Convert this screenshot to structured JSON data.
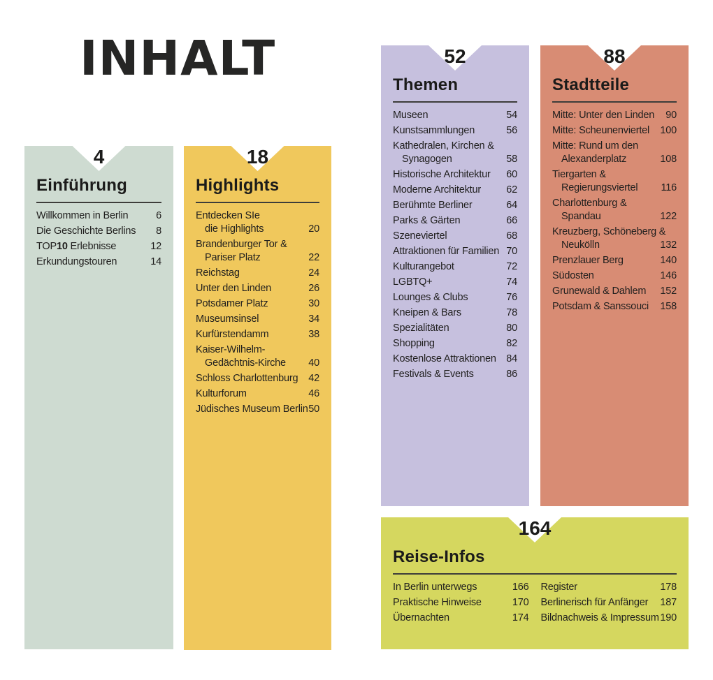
{
  "page": {
    "title": "INHALT",
    "background": "#ffffff",
    "text_color": "#201f1e"
  },
  "sections": [
    {
      "name": "einfuehrung",
      "page_number": "4",
      "heading": "Einführung",
      "color": "#cedbd1",
      "items": [
        {
          "lines": [
            "Willkommen in Berlin"
          ],
          "page": "6"
        },
        {
          "lines": [
            "Die Geschichte Berlins"
          ],
          "page": "8"
        },
        {
          "lines": [
            [
              {
                "text": "TOP"
              },
              {
                "text": "10",
                "bold": true
              },
              {
                "text": " Erlebnisse"
              }
            ]
          ],
          "page": "12"
        },
        {
          "lines": [
            "Erkundungstouren"
          ],
          "page": "14"
        }
      ]
    },
    {
      "name": "highlights",
      "page_number": "18",
      "heading": "Highlights",
      "color": "#f0c85c",
      "items": [
        {
          "lines": [
            "Entdecken SIe",
            "die Highlights"
          ],
          "page": "20"
        },
        {
          "lines": [
            "Brandenburger Tor &",
            "Pariser Platz"
          ],
          "page": "22"
        },
        {
          "lines": [
            "Reichstag"
          ],
          "page": "24"
        },
        {
          "lines": [
            "Unter den Linden"
          ],
          "page": "26"
        },
        {
          "lines": [
            "Potsdamer Platz"
          ],
          "page": "30"
        },
        {
          "lines": [
            "Museumsinsel"
          ],
          "page": "34"
        },
        {
          "lines": [
            "Kurfürstendamm"
          ],
          "page": "38"
        },
        {
          "lines": [
            "Kaiser-Wilhelm-",
            "Gedächtnis-Kirche"
          ],
          "page": "40"
        },
        {
          "lines": [
            "Schloss Charlottenburg"
          ],
          "page": "42"
        },
        {
          "lines": [
            "Kulturforum"
          ],
          "page": "46"
        },
        {
          "lines": [
            "Jüdisches Museum Berlin"
          ],
          "page": "50"
        }
      ]
    },
    {
      "name": "themen",
      "page_number": "52",
      "heading": "Themen",
      "color": "#c6c0de",
      "items": [
        {
          "lines": [
            "Museen"
          ],
          "page": "54"
        },
        {
          "lines": [
            "Kunstsammlungen"
          ],
          "page": "56"
        },
        {
          "lines": [
            "Kathedralen, Kirchen &",
            "Synagogen"
          ],
          "page": "58"
        },
        {
          "lines": [
            "Historische Architektur"
          ],
          "page": "60"
        },
        {
          "lines": [
            "Moderne Architektur"
          ],
          "page": "62"
        },
        {
          "lines": [
            "Berühmte Berliner"
          ],
          "page": "64"
        },
        {
          "lines": [
            "Parks & Gärten"
          ],
          "page": "66"
        },
        {
          "lines": [
            "Szeneviertel"
          ],
          "page": "68"
        },
        {
          "lines": [
            "Attraktionen für Familien"
          ],
          "page": "70"
        },
        {
          "lines": [
            "Kulturangebot"
          ],
          "page": "72"
        },
        {
          "lines": [
            "LGBTQ+"
          ],
          "page": "74"
        },
        {
          "lines": [
            "Lounges & Clubs"
          ],
          "page": "76"
        },
        {
          "lines": [
            "Kneipen & Bars"
          ],
          "page": "78"
        },
        {
          "lines": [
            "Spezialitäten"
          ],
          "page": "80"
        },
        {
          "lines": [
            "Shopping"
          ],
          "page": "82"
        },
        {
          "lines": [
            "Kostenlose Attraktionen"
          ],
          "page": "84"
        },
        {
          "lines": [
            "Festivals & Events"
          ],
          "page": "86"
        }
      ]
    },
    {
      "name": "stadtteile",
      "page_number": "88",
      "heading": "Stadtteile",
      "color": "#d88c74",
      "items": [
        {
          "lines": [
            "Mitte: Unter den Linden"
          ],
          "page": "90"
        },
        {
          "lines": [
            "Mitte: Scheunenviertel"
          ],
          "page": "100"
        },
        {
          "lines": [
            "Mitte: Rund um den",
            "Alexanderplatz"
          ],
          "page": "108"
        },
        {
          "lines": [
            "Tiergarten &",
            "Regierungsviertel"
          ],
          "page": "116"
        },
        {
          "lines": [
            "Charlottenburg &",
            "Spandau"
          ],
          "page": "122"
        },
        {
          "lines": [
            "Kreuzberg, Schöneberg &",
            "Neukölln"
          ],
          "page": "132"
        },
        {
          "lines": [
            "Prenzlauer Berg"
          ],
          "page": "140"
        },
        {
          "lines": [
            "Südosten"
          ],
          "page": "146"
        },
        {
          "lines": [
            "Grunewald & Dahlem"
          ],
          "page": "152"
        },
        {
          "lines": [
            "Potsdam & Sanssouci"
          ],
          "page": "158"
        }
      ]
    },
    {
      "name": "reise-infos",
      "page_number": "164",
      "heading": "Reise-Infos",
      "color": "#d5d75f",
      "columns": [
        [
          {
            "lines": [
              "In Berlin unterwegs"
            ],
            "page": "166"
          },
          {
            "lines": [
              "Praktische Hinweise"
            ],
            "page": "170"
          },
          {
            "lines": [
              "Übernachten"
            ],
            "page": "174"
          }
        ],
        [
          {
            "lines": [
              "Register"
            ],
            "page": "178"
          },
          {
            "lines": [
              "Berlinerisch für Anfänger"
            ],
            "page": "187"
          },
          {
            "lines": [
              "Bildnachweis & Impressum"
            ],
            "page": "190"
          }
        ]
      ]
    }
  ]
}
